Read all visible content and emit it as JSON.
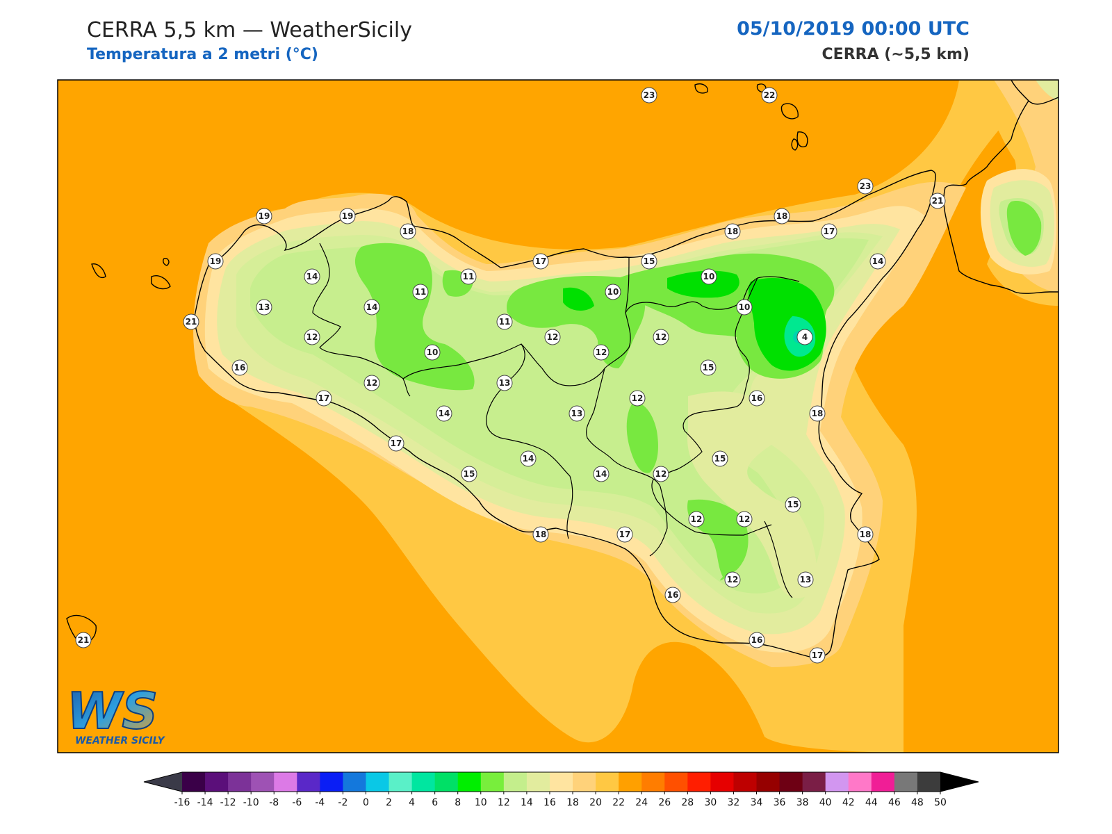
{
  "header": {
    "title_left": "CERRA 5,5 km — WeatherSicily",
    "subtitle_left": "Temperatura a 2 metri (°C)",
    "title_right": "05/10/2019 00:00 UTC",
    "subtitle_right": "CERRA (~5,5 km)"
  },
  "colors": {
    "sea": "#FFA500",
    "coast_band": "#FFC843",
    "t18": "#FFD27A",
    "t16": "#FFE4A0",
    "t14": "#E2EC9E",
    "t12": "#C7EE8E",
    "t10": "#78E840",
    "t8": "#00E000",
    "t6": "#00E890",
    "title_blue": "#1565C0"
  },
  "logo": {
    "main": "WS",
    "sub": "WEATHER SICILY"
  },
  "stations": [
    {
      "v": "23"
    },
    {
      "v": "22"
    },
    {
      "v": "23"
    },
    {
      "v": "21"
    },
    {
      "v": "19"
    },
    {
      "v": "19"
    },
    {
      "v": "18"
    },
    {
      "v": "19"
    },
    {
      "v": "14"
    },
    {
      "v": "11"
    },
    {
      "v": "11"
    },
    {
      "v": "17"
    },
    {
      "v": "15"
    },
    {
      "v": "18"
    },
    {
      "v": "18"
    },
    {
      "v": "17"
    },
    {
      "v": "14"
    },
    {
      "v": "10"
    },
    {
      "v": "10"
    },
    {
      "v": "10"
    },
    {
      "v": "13"
    },
    {
      "v": "14"
    },
    {
      "v": "21"
    },
    {
      "v": "12"
    },
    {
      "v": "11"
    },
    {
      "v": "12"
    },
    {
      "v": "12"
    },
    {
      "v": "12"
    },
    {
      "v": "4"
    },
    {
      "v": "16"
    },
    {
      "v": "10"
    },
    {
      "v": "12"
    },
    {
      "v": "15"
    },
    {
      "v": "13"
    },
    {
      "v": "17"
    },
    {
      "v": "14"
    },
    {
      "v": "13"
    },
    {
      "v": "12"
    },
    {
      "v": "16"
    },
    {
      "v": "18"
    },
    {
      "v": "17"
    },
    {
      "v": "14"
    },
    {
      "v": "15"
    },
    {
      "v": "15"
    },
    {
      "v": "14"
    },
    {
      "v": "12"
    },
    {
      "v": "15"
    },
    {
      "v": "18"
    },
    {
      "v": "17"
    },
    {
      "v": "12"
    },
    {
      "v": "12"
    },
    {
      "v": "18"
    },
    {
      "v": "16"
    },
    {
      "v": "12"
    },
    {
      "v": "13"
    },
    {
      "v": "21"
    },
    {
      "v": "16"
    },
    {
      "v": "17"
    }
  ],
  "colorbar": {
    "colors": [
      "#3a0048",
      "#5b0f7a",
      "#7c3298",
      "#9e52b4",
      "#dc7ae6",
      "#5a28c8",
      "#0a1ef5",
      "#1478dc",
      "#0ac8e6",
      "#5af0c8",
      "#00e6a0",
      "#00e066",
      "#00ee00",
      "#78ee3c",
      "#c4ee8c",
      "#e2ec9e",
      "#ffe4a0",
      "#ffd27a",
      "#ffc843",
      "#ffa000",
      "#ff7d00",
      "#ff5000",
      "#ff1e00",
      "#e60000",
      "#be0000",
      "#960000",
      "#6e0014",
      "#7a1e46",
      "#d296f0",
      "#ff78c8",
      "#f01e96",
      "#787878",
      "#3c3c3c"
    ],
    "labels": [
      "-16",
      "-14",
      "-12",
      "-10",
      "-8",
      "-6",
      "-4",
      "-2",
      "0",
      "2",
      "4",
      "6",
      "8",
      "10",
      "12",
      "14",
      "16",
      "18",
      "20",
      "22",
      "24",
      "26",
      "28",
      "30",
      "32",
      "34",
      "36",
      "38",
      "40",
      "42",
      "44",
      "46",
      "48",
      "50"
    ]
  }
}
